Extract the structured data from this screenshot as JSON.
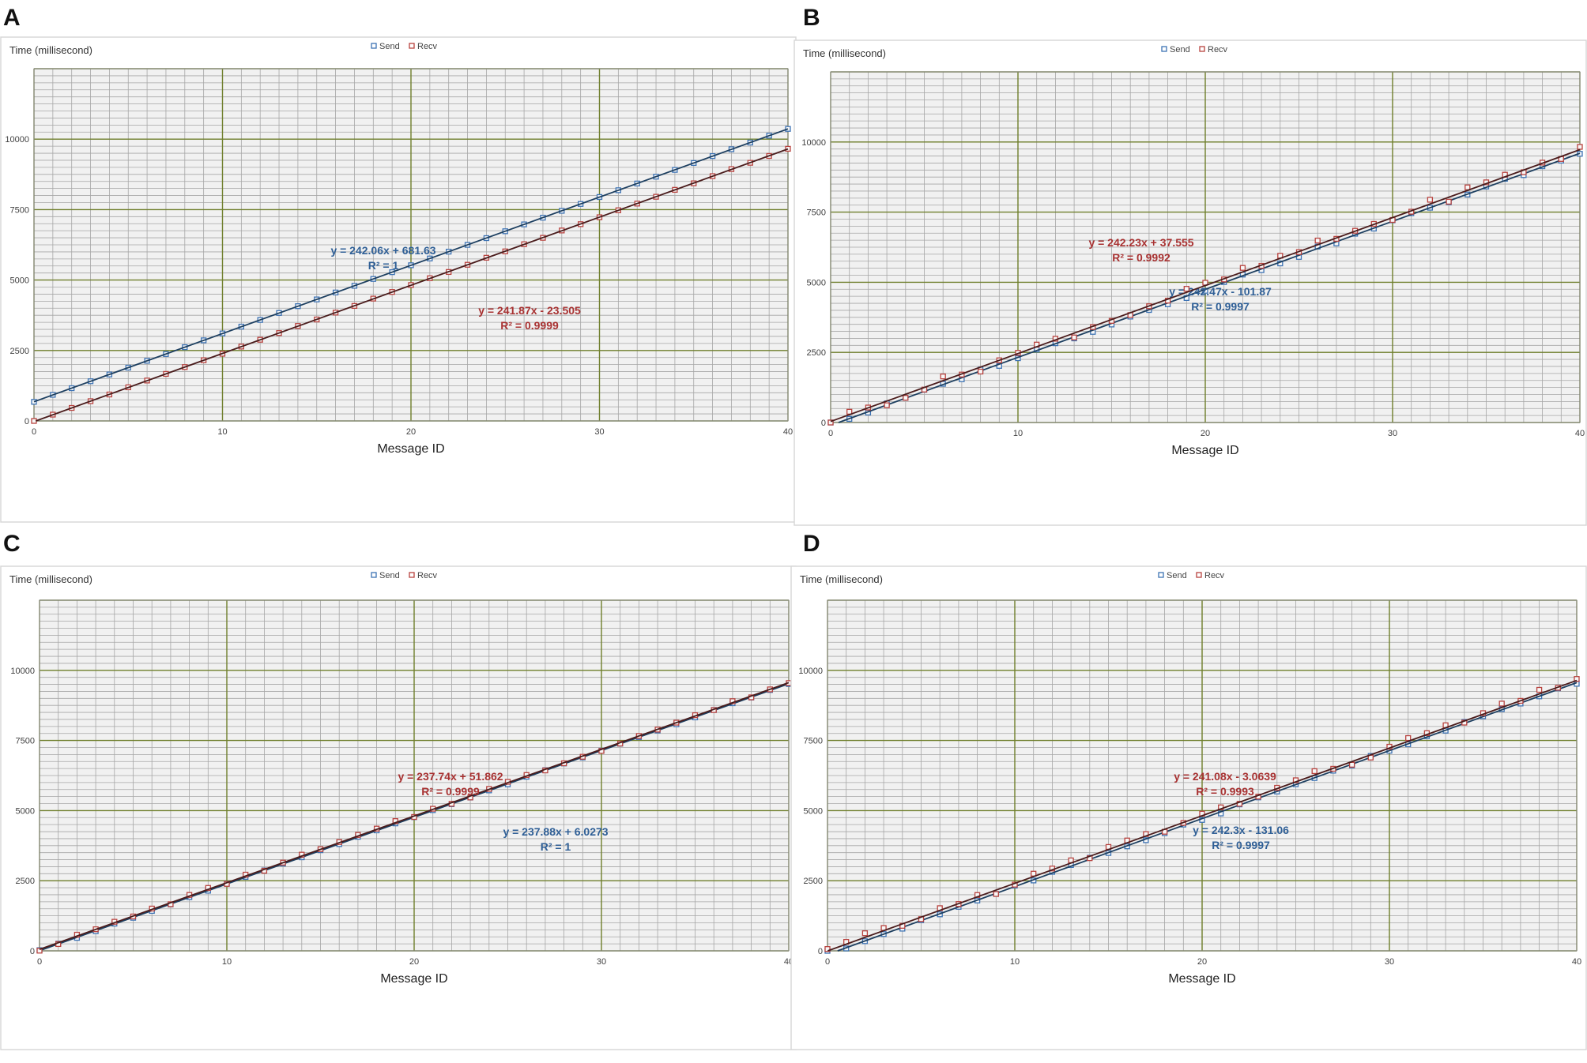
{
  "panels": [
    {
      "letter": "A",
      "chart_data": {
        "type": "scatter",
        "ylabel": "Time (millisecond)",
        "xlabel": "Message ID",
        "xlim": [
          0,
          40
        ],
        "ylim": [
          0,
          12500
        ],
        "x_ticks": [
          0,
          10,
          20,
          30,
          40
        ],
        "y_ticks": [
          0,
          2500,
          5000,
          7500,
          10000
        ],
        "grid": true,
        "legend_position": "top-center",
        "series": [
          {
            "name": "Send",
            "color": "#3d73b4",
            "trend": {
              "slope": 242.06,
              "intercept": 681.63,
              "equation": "y = 242.06x + 681.63",
              "r2": "R² = 1"
            }
          },
          {
            "name": "Recv",
            "color": "#b8433f",
            "trend": {
              "slope": 241.87,
              "intercept": -23.505,
              "equation": "y = 241.87x - 23.505",
              "r2": "R² = 0.9999"
            }
          }
        ]
      }
    },
    {
      "letter": "B",
      "chart_data": {
        "type": "scatter",
        "ylabel": "Time (millisecond)",
        "xlabel": "Message ID",
        "xlim": [
          0,
          40
        ],
        "ylim": [
          0,
          12500
        ],
        "x_ticks": [
          0,
          10,
          20,
          30,
          40
        ],
        "y_ticks": [
          0,
          2500,
          5000,
          7500,
          10000
        ],
        "grid": true,
        "legend_position": "top-center",
        "series": [
          {
            "name": "Send",
            "color": "#3d73b4",
            "trend": {
              "slope": 242.47,
              "intercept": -101.87,
              "equation": "y = 242.47x - 101.87",
              "r2": "R² = 0.9997"
            }
          },
          {
            "name": "Recv",
            "color": "#b8433f",
            "trend": {
              "slope": 242.23,
              "intercept": 37.555,
              "equation": "y = 242.23x + 37.555",
              "r2": "R² = 0.9992"
            }
          }
        ]
      }
    },
    {
      "letter": "C",
      "chart_data": {
        "type": "scatter",
        "ylabel": "Time (millisecond)",
        "xlabel": "Message ID",
        "xlim": [
          0,
          40
        ],
        "ylim": [
          0,
          12500
        ],
        "x_ticks": [
          0,
          10,
          20,
          30,
          40
        ],
        "y_ticks": [
          0,
          2500,
          5000,
          7500,
          10000
        ],
        "grid": true,
        "legend_position": "top-center",
        "series": [
          {
            "name": "Send",
            "color": "#3d73b4",
            "trend": {
              "slope": 237.88,
              "intercept": 6.0273,
              "equation": "y = 237.88x + 6.0273",
              "r2": "R² = 1"
            }
          },
          {
            "name": "Recv",
            "color": "#b8433f",
            "trend": {
              "slope": 237.74,
              "intercept": 51.862,
              "equation": "y = 237.74x + 51.862",
              "r2": "R² = 0.9999"
            }
          }
        ]
      }
    },
    {
      "letter": "D",
      "chart_data": {
        "type": "scatter",
        "ylabel": "Time (millisecond)",
        "xlabel": "Message ID",
        "xlim": [
          0,
          40
        ],
        "ylim": [
          0,
          12500
        ],
        "x_ticks": [
          0,
          10,
          20,
          30,
          40
        ],
        "y_ticks": [
          0,
          2500,
          5000,
          7500,
          10000
        ],
        "grid": true,
        "legend_position": "top-center",
        "series": [
          {
            "name": "Send",
            "color": "#3d73b4",
            "trend": {
              "slope": 242.3,
              "intercept": -131.06,
              "equation": "y = 242.3x - 131.06",
              "r2": "R² = 0.9997"
            }
          },
          {
            "name": "Recv",
            "color": "#b8433f",
            "trend": {
              "slope": 241.08,
              "intercept": -3.0639,
              "equation": "y = 241.08x - 3.0639",
              "r2": "R² = 0.9993"
            }
          }
        ]
      }
    }
  ]
}
